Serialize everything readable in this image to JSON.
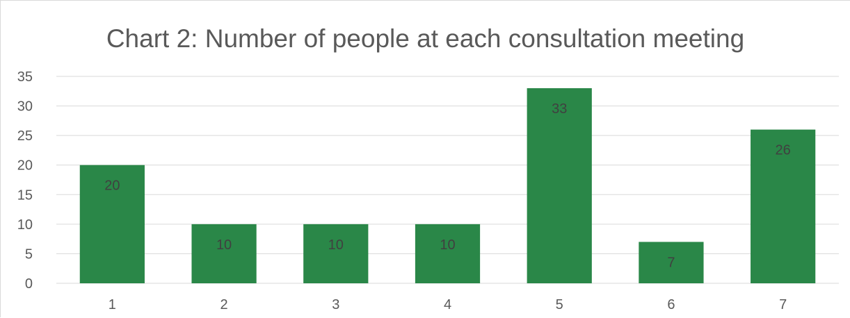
{
  "chart_data": {
    "type": "bar",
    "title": "Chart 2: Number of people at each consultation meeting",
    "categories": [
      "1",
      "2",
      "3",
      "4",
      "5",
      "6",
      "7"
    ],
    "values": [
      20,
      10,
      10,
      10,
      33,
      7,
      26
    ],
    "ylim": [
      0,
      35
    ],
    "yticks": [
      0,
      5,
      10,
      15,
      20,
      25,
      30,
      35
    ],
    "grid": true,
    "data_labels": true,
    "colors": {
      "bar": "#2a8748",
      "grid": "#d9d9d9",
      "text": "#595959",
      "data_label": "#404040"
    }
  }
}
